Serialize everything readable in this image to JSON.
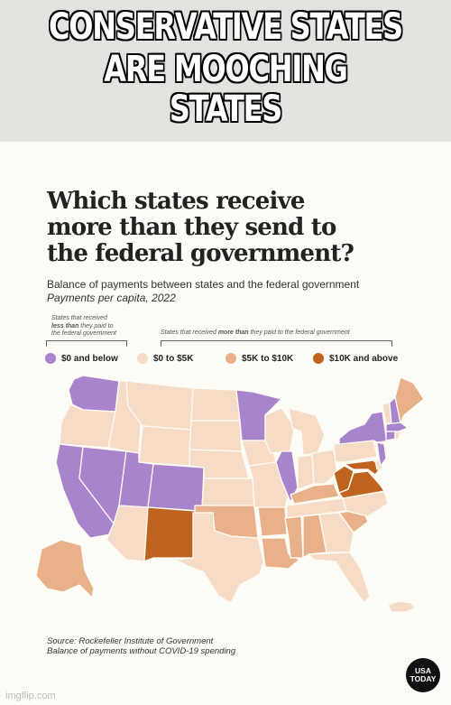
{
  "meme": {
    "line1": "CONSERVATIVE STATES",
    "line2": "ARE MOOCHING STATES"
  },
  "infographic": {
    "title_lines": [
      "Which states receive",
      "more than they send to",
      "the federal government?"
    ],
    "subtitle": "Balance of payments between states and the federal government",
    "subtitle_italic": "Payments per capita, 2022",
    "note_less": [
      "States that received",
      "less than they paid to",
      "the federal government"
    ],
    "note_more": "States that received more than they paid to the federal government",
    "legend": [
      {
        "label": "$0 and below",
        "color": "#a884cc"
      },
      {
        "label": "$0 to $5K",
        "color": "#f6dcc6"
      },
      {
        "label": "$5K to $10K",
        "color": "#e9b18a"
      },
      {
        "label": "$10K and above",
        "color": "#c0631f"
      }
    ],
    "source_line1": "Source: Rockefeller Institute of Government",
    "source_line2": "Balance of payments without COVID-19 spending",
    "logo": [
      "USA",
      "TODAY"
    ]
  },
  "map_data": {
    "categories": {
      "$0 and below": [
        "WA",
        "CA",
        "NV",
        "UT",
        "CO",
        "MN",
        "IL",
        "NY",
        "MA",
        "NJ",
        "CT",
        "NH"
      ],
      "$5K to $10K": [
        "AK",
        "OK",
        "AR",
        "LA",
        "MS",
        "AL",
        "KY",
        "SC",
        "ME"
      ],
      "$10K and above": [
        "NM",
        "VA",
        "WV",
        "MD"
      ],
      "$0 to $5K": [
        "OR",
        "ID",
        "MT",
        "WY",
        "ND",
        "SD",
        "NE",
        "KS",
        "TX",
        "AZ",
        "IA",
        "MO",
        "WI",
        "MI",
        "IN",
        "OH",
        "PA",
        "TN",
        "NC",
        "GA",
        "FL",
        "HI",
        "VT",
        "RI",
        "DE"
      ]
    }
  },
  "watermark": "imgflip.com"
}
